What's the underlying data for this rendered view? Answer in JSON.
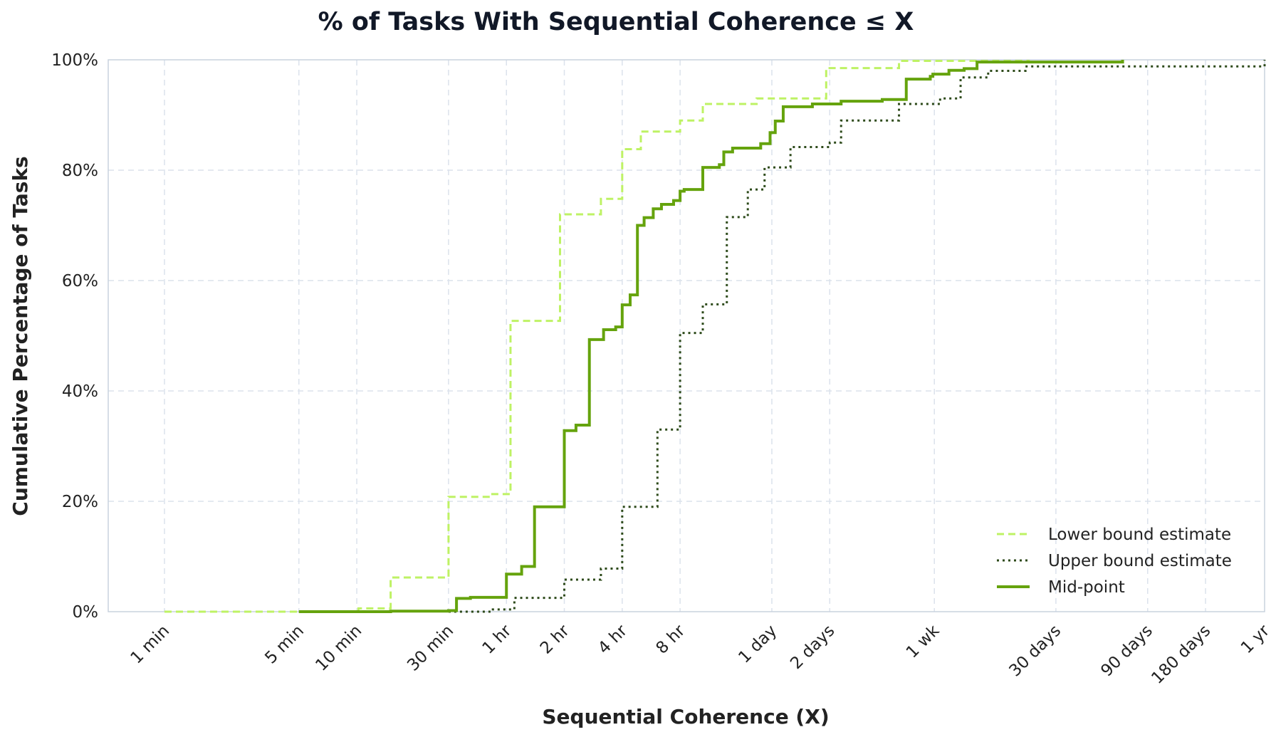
{
  "chart_data": {
    "type": "line",
    "step": true,
    "title": "% of Tasks With Sequential Coherence ≤ X",
    "xlabel": "Sequential Coherence (X)",
    "ylabel": "Cumulative Percentage of Tasks",
    "x_scale": "log",
    "x_unit": "hours",
    "x_ticks": [
      {
        "label": "1 min",
        "value": 0.016667
      },
      {
        "label": "5 min",
        "value": 0.083333
      },
      {
        "label": "10 min",
        "value": 0.166667
      },
      {
        "label": "30 min",
        "value": 0.5
      },
      {
        "label": "1 hr",
        "value": 1
      },
      {
        "label": "2 hr",
        "value": 2
      },
      {
        "label": "4 hr",
        "value": 4
      },
      {
        "label": "8 hr",
        "value": 8
      },
      {
        "label": "1 day",
        "value": 24
      },
      {
        "label": "2 days",
        "value": 48
      },
      {
        "label": "1 wk",
        "value": 168
      },
      {
        "label": "30 days",
        "value": 720
      },
      {
        "label": "90 days",
        "value": 2160
      },
      {
        "label": "180 days",
        "value": 4320
      },
      {
        "label": "1 yr",
        "value": 8760
      }
    ],
    "xlim": [
      0.0085,
      8760
    ],
    "ylim": [
      0,
      100
    ],
    "y_ticks": [
      {
        "label": "0%",
        "value": 0
      },
      {
        "label": "20%",
        "value": 20
      },
      {
        "label": "40%",
        "value": 40
      },
      {
        "label": "60%",
        "value": 60
      },
      {
        "label": "80%",
        "value": 80
      },
      {
        "label": "100%",
        "value": 100
      }
    ],
    "grid": true,
    "legend_position": "bottom-right",
    "series": [
      {
        "name": "Lower bound estimate",
        "color": "#bef264",
        "style": "dashed",
        "x": [
          0.016667,
          0.17,
          0.25,
          0.5,
          0.83,
          1.05,
          1.9,
          3.1,
          4,
          5,
          8,
          10.5,
          20,
          46,
          110,
          520
        ],
        "y": [
          0,
          0.6,
          6.2,
          20.8,
          21.3,
          52.7,
          72,
          74.8,
          83.8,
          87,
          89,
          92,
          93,
          98.5,
          99.8,
          100
        ]
      },
      {
        "name": "Upper bound estimate",
        "color": "#2d4a1a",
        "style": "dotted",
        "x": [
          0.5,
          0.85,
          1.1,
          2,
          3.1,
          4,
          6.1,
          8,
          10.5,
          14,
          18,
          22,
          30,
          48,
          55,
          110,
          180,
          230,
          320,
          500,
          8760
        ],
        "y": [
          0,
          0.4,
          2.5,
          5.8,
          7.8,
          19,
          33,
          50.5,
          55.7,
          71.5,
          76.5,
          80.5,
          84.2,
          85,
          89,
          92,
          93,
          96.8,
          98,
          98.8,
          100
        ]
      },
      {
        "name": "Mid-point",
        "color": "#65a30d",
        "style": "solid",
        "x": [
          0.0833,
          0.25,
          0.5,
          0.55,
          0.65,
          1,
          1.2,
          1.4,
          2,
          2.3,
          2.7,
          3.2,
          3.7,
          4,
          4.4,
          4.8,
          5.2,
          5.8,
          6.4,
          7.4,
          8,
          8.4,
          10.5,
          12.8,
          13.5,
          15,
          21,
          23.5,
          25,
          27.5,
          39,
          55,
          90,
          120,
          160,
          165,
          200,
          240,
          280,
          1600
        ],
        "y": [
          0,
          0.1,
          0.2,
          2.4,
          2.6,
          6.8,
          8.2,
          19,
          32.8,
          33.8,
          49.3,
          51.1,
          51.6,
          55.6,
          57.4,
          70,
          71.4,
          73,
          73.8,
          74.5,
          76.2,
          76.5,
          80.5,
          81,
          83.3,
          84,
          84.8,
          86.8,
          88.9,
          91.5,
          92,
          92.5,
          92.8,
          96.5,
          97,
          97.4,
          98.1,
          98.4,
          99.6,
          100
        ]
      }
    ]
  }
}
